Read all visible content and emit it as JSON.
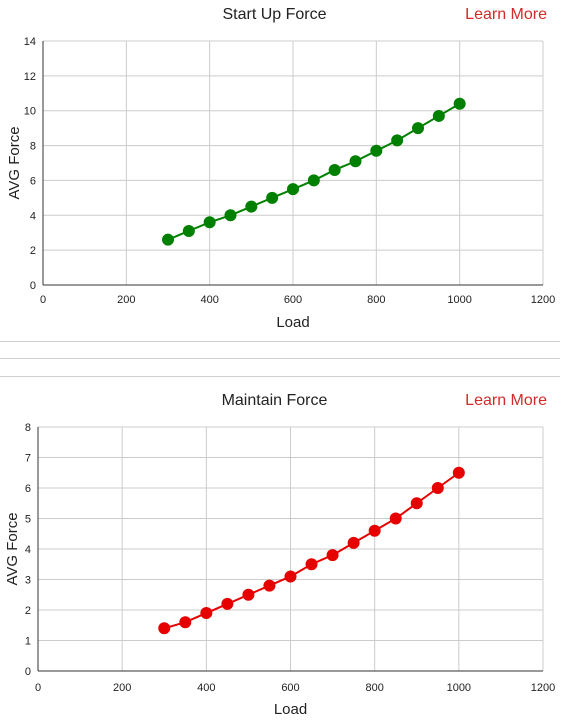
{
  "charts": [
    {
      "learn_more": "Learn More"
    },
    {
      "learn_more": "Learn More"
    }
  ],
  "chart_data": [
    {
      "type": "line",
      "title": "Start Up Force",
      "xlabel": "Load",
      "ylabel": "AVG Force",
      "x": [
        300,
        350,
        400,
        450,
        500,
        550,
        600,
        650,
        700,
        750,
        800,
        850,
        900,
        950,
        1000
      ],
      "series": [
        {
          "values": [
            2.6,
            3.1,
            3.6,
            4.0,
            4.5,
            5.0,
            5.5,
            6.0,
            6.6,
            7.1,
            7.7,
            8.3,
            9.0,
            9.7,
            10.4
          ],
          "color": "#008000"
        }
      ],
      "xlim": [
        0,
        1200
      ],
      "ylim": [
        0,
        14
      ],
      "xticks": [
        0,
        200,
        400,
        600,
        800,
        1000,
        1200
      ],
      "yticks": [
        0,
        2,
        4,
        6,
        8,
        10,
        12,
        14
      ],
      "grid": true
    },
    {
      "type": "line",
      "title": "Maintain Force",
      "xlabel": "Load",
      "ylabel": "AVG Force",
      "x": [
        300,
        350,
        400,
        450,
        500,
        550,
        600,
        650,
        700,
        750,
        800,
        850,
        900,
        950,
        1000
      ],
      "series": [
        {
          "values": [
            1.4,
            1.6,
            1.9,
            2.2,
            2.5,
            2.8,
            3.1,
            3.5,
            3.8,
            4.2,
            4.6,
            5.0,
            5.5,
            6.0,
            6.5
          ],
          "color": "#e60000"
        }
      ],
      "xlim": [
        0,
        1200
      ],
      "ylim": [
        0,
        8
      ],
      "xticks": [
        0,
        200,
        400,
        600,
        800,
        1000,
        1200
      ],
      "yticks": [
        0,
        1,
        2,
        3,
        4,
        5,
        6,
        7,
        8
      ],
      "grid": true
    }
  ]
}
